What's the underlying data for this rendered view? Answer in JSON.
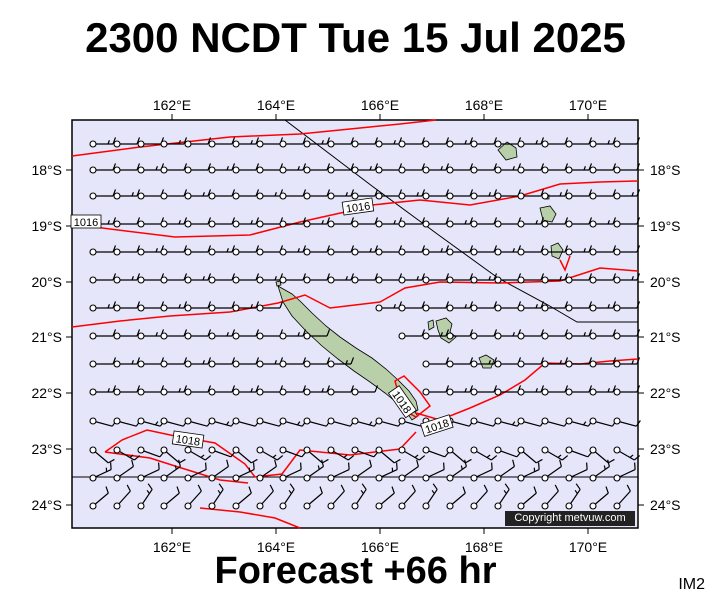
{
  "title": "2300 NCDT Tue 15 Jul 2025",
  "footer": "Forecast +66 hr",
  "image_label": "IM2",
  "copyright": "Copyright metvuw.com",
  "colors": {
    "ocean": "#e6e6fb",
    "isobar": "#ff0000",
    "land": "#b9cfa9",
    "wind": "#000000"
  },
  "map": {
    "lon_ticks": [
      "162°E",
      "164°E",
      "166°E",
      "168°E",
      "170°E"
    ],
    "lat_ticks": [
      "18°S",
      "19°S",
      "20°S",
      "21°S",
      "22°S",
      "23°S",
      "24°S"
    ],
    "isobar_labels": [
      "1016",
      "1016",
      "1018",
      "1018",
      "1018"
    ]
  }
}
